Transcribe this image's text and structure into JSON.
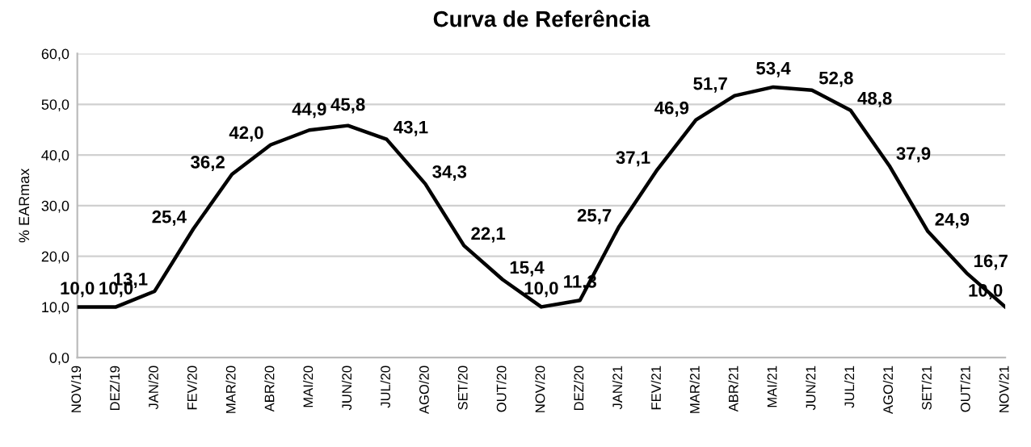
{
  "chart_data": {
    "type": "line",
    "title": "Curva de Referência",
    "ylabel": "% EARmax",
    "categories": [
      "NOV/19",
      "DEZ/19",
      "JAN/20",
      "FEV/20",
      "MAR/20",
      "ABR/20",
      "MAI/20",
      "JUN/20",
      "JUL/20",
      "AGO/20",
      "SET/20",
      "OUT/20",
      "NOV/20",
      "DEZ/20",
      "JAN/21",
      "FEV/21",
      "MAR/21",
      "ABR/21",
      "MAI/21",
      "JUN/21",
      "JUL/21",
      "AGO/21",
      "SET/21",
      "OUT/21",
      "NOV/21"
    ],
    "series": [
      {
        "color": "#000000",
        "values": [
          10.0,
          10.0,
          13.1,
          25.4,
          36.2,
          42.0,
          44.9,
          45.8,
          43.1,
          34.3,
          22.1,
          15.4,
          10.0,
          11.3,
          25.7,
          37.1,
          46.9,
          51.7,
          53.4,
          52.8,
          48.8,
          37.9,
          24.9,
          16.7,
          10.0
        ],
        "value_labels": [
          "10,0",
          "10,0",
          "13,1",
          "25,4",
          "36,2",
          "42,0",
          "44,9",
          "45,8",
          "43,1",
          "34,3",
          "22,1",
          "15,4",
          "10,0",
          "11,3",
          "25,7",
          "37,1",
          "46,9",
          "51,7",
          "53,4",
          "52,8",
          "48,8",
          "37,9",
          "24,9",
          "16,7",
          "10,0"
        ]
      }
    ],
    "ylim": [
      0,
      60
    ],
    "yticks": [
      {
        "value": 0,
        "label": "0,0"
      },
      {
        "value": 10,
        "label": "10,0"
      },
      {
        "value": 20,
        "label": "20,0"
      },
      {
        "value": 30,
        "label": "30,0"
      },
      {
        "value": 40,
        "label": "40,0"
      },
      {
        "value": 50,
        "label": "50,0"
      },
      {
        "value": 60,
        "label": "60,0"
      }
    ],
    "grid": "y",
    "legend": false,
    "marker": "none",
    "line_style": "solid"
  }
}
